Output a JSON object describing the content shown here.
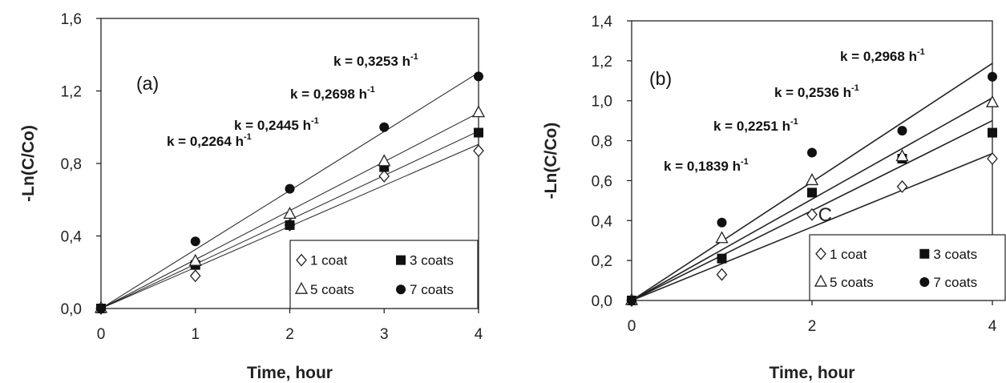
{
  "chart_data": [
    {
      "type": "scatter",
      "panel_label": "(a)",
      "xlabel": "Time, hour",
      "ylabel": "-Ln(C/Co)",
      "xlim": [
        0,
        4
      ],
      "ylim": [
        0,
        1.6
      ],
      "x_ticks": [
        "0",
        "1",
        "2",
        "3",
        "4"
      ],
      "y_ticks": [
        "0,0",
        "0,4",
        "0,8",
        "1,2",
        "1,6"
      ],
      "legend": {
        "position": "bottom-right",
        "row1": [
          "1 coat",
          "3 coats"
        ],
        "row2": [
          "5 coats",
          "7 coats"
        ]
      },
      "series": [
        {
          "name": "1 coat",
          "marker": "diamond-open",
          "x": [
            0,
            1,
            2,
            3,
            4
          ],
          "y": [
            0,
            0.18,
            0.46,
            0.73,
            0.87
          ],
          "k": 0.2264
        },
        {
          "name": "3 coats",
          "marker": "square-filled",
          "x": [
            0,
            1,
            2,
            3,
            4
          ],
          "y": [
            0,
            0.24,
            0.46,
            0.78,
            0.97
          ],
          "k": 0.2445
        },
        {
          "name": "5 coats",
          "marker": "triangle-open",
          "x": [
            0,
            1,
            2,
            3,
            4
          ],
          "y": [
            0,
            0.26,
            0.52,
            0.81,
            1.08
          ],
          "k": 0.2698
        },
        {
          "name": "7 coats",
          "marker": "circle-filled",
          "x": [
            0,
            1,
            2,
            3,
            4
          ],
          "y": [
            0,
            0.37,
            0.66,
            1.0,
            1.28
          ],
          "k": 0.3253
        }
      ],
      "k_labels": [
        {
          "series": "1 coat",
          "prefix": "k = ",
          "value": "0,2264",
          "unit": " h",
          "sup": "-1"
        },
        {
          "series": "3 coats",
          "prefix": "k = ",
          "value": "0,2445",
          "unit": " h",
          "sup": "-1"
        },
        {
          "series": "5 coats",
          "prefix": "k = ",
          "value": "0,2698",
          "unit": " h",
          "sup": "-1"
        },
        {
          "series": "7 coats",
          "prefix": "k = ",
          "value": "0,3253",
          "unit": " h",
          "sup": "-1"
        }
      ],
      "annotations": []
    },
    {
      "type": "scatter",
      "panel_label": "(b)",
      "xlabel": "Time, hour",
      "ylabel": "-Ln(C/Co)",
      "xlim": [
        0,
        4
      ],
      "ylim": [
        0,
        1.4
      ],
      "x_ticks": [
        "0",
        "2",
        "4"
      ],
      "y_ticks": [
        "0,0",
        "0,2",
        "0,4",
        "0,6",
        "0,8",
        "1,0",
        "1,2",
        "1,4"
      ],
      "legend": {
        "position": "bottom-right",
        "row1": [
          "1 coat",
          "3 coats"
        ],
        "row2": [
          "5 coats",
          "7 coats"
        ]
      },
      "series": [
        {
          "name": "1 coat",
          "marker": "diamond-open",
          "x": [
            0,
            1,
            2,
            3,
            4
          ],
          "y": [
            0,
            0.13,
            0.43,
            0.57,
            0.71
          ],
          "k": 0.1839
        },
        {
          "name": "3 coats",
          "marker": "square-filled",
          "x": [
            0,
            1,
            2,
            3,
            4
          ],
          "y": [
            0,
            0.21,
            0.54,
            0.71,
            0.84
          ],
          "k": 0.2251
        },
        {
          "name": "5 coats",
          "marker": "triangle-open",
          "x": [
            0,
            1,
            2,
            3,
            4
          ],
          "y": [
            0,
            0.31,
            0.6,
            0.72,
            0.99
          ],
          "k": 0.2536
        },
        {
          "name": "7 coats",
          "marker": "circle-filled",
          "x": [
            0,
            1,
            2,
            3,
            4
          ],
          "y": [
            0,
            0.39,
            0.74,
            0.85,
            1.12
          ],
          "k": 0.2968
        }
      ],
      "k_labels": [
        {
          "series": "1 coat",
          "prefix": "k = ",
          "value": "0,1839",
          "unit": " h",
          "sup": "-1"
        },
        {
          "series": "3 coats",
          "prefix": "k = ",
          "value": "0,2251",
          "unit": " h",
          "sup": "-1"
        },
        {
          "series": "5 coats",
          "prefix": "k = ",
          "value": "0,2536",
          "unit": " h",
          "sup": "-1"
        },
        {
          "series": "7 coats",
          "prefix": "k = ",
          "value": "0,2968",
          "unit": " h",
          "sup": "-1"
        }
      ],
      "annotations": [
        {
          "text": "C",
          "x": 2.05,
          "y": 0.43
        }
      ]
    }
  ]
}
